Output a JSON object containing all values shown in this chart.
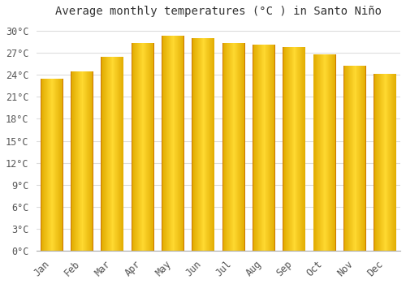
{
  "title": "Average monthly temperatures (°C ) in Santo Niño",
  "months": [
    "Jan",
    "Feb",
    "Mar",
    "Apr",
    "May",
    "Jun",
    "Jul",
    "Aug",
    "Sep",
    "Oct",
    "Nov",
    "Dec"
  ],
  "values": [
    23.5,
    24.5,
    26.5,
    28.3,
    29.3,
    29.0,
    28.3,
    28.1,
    27.8,
    26.8,
    25.2,
    24.1
  ],
  "bar_color_main": "#FFAA00",
  "bar_color_light": "#FFD966",
  "bar_color_dark": "#E07B00",
  "background_color": "#FFFFFF",
  "grid_color": "#DDDDDD",
  "ylim": [
    0,
    31
  ],
  "yticks": [
    0,
    3,
    6,
    9,
    12,
    15,
    18,
    21,
    24,
    27,
    30
  ],
  "title_fontsize": 10,
  "tick_fontsize": 8.5,
  "bar_width": 0.75
}
